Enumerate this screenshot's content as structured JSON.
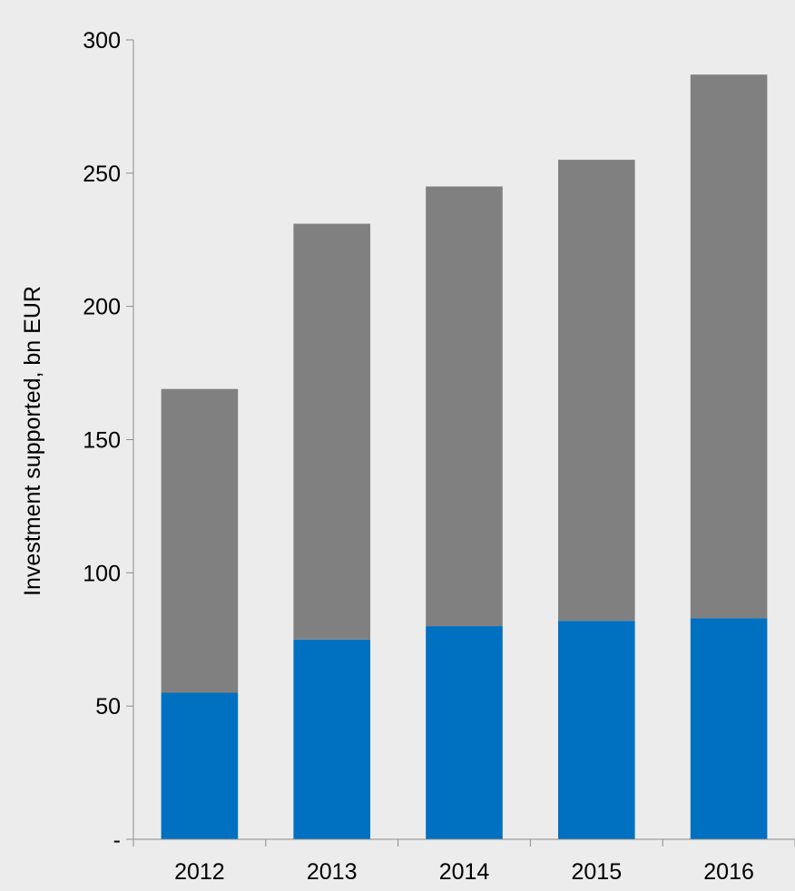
{
  "chart_data": {
    "type": "bar",
    "stacked": true,
    "title": "",
    "xlabel": "",
    "ylabel": "Investment supported, bn EUR",
    "categories": [
      "2012",
      "2013",
      "2014",
      "2015",
      "2016"
    ],
    "series": [
      {
        "color": "#0070c0",
        "values": [
          55,
          75,
          80,
          82,
          83
        ]
      },
      {
        "color": "#808080",
        "values": [
          114,
          156,
          165,
          173,
          204
        ]
      }
    ],
    "ylim": [
      0,
      300
    ],
    "yticks": [
      0,
      50,
      100,
      150,
      200,
      250,
      300
    ],
    "ytick_labels": [
      "-",
      "50",
      "100",
      "150",
      "200",
      "250",
      "300"
    ],
    "grid": false,
    "legend": "none"
  }
}
